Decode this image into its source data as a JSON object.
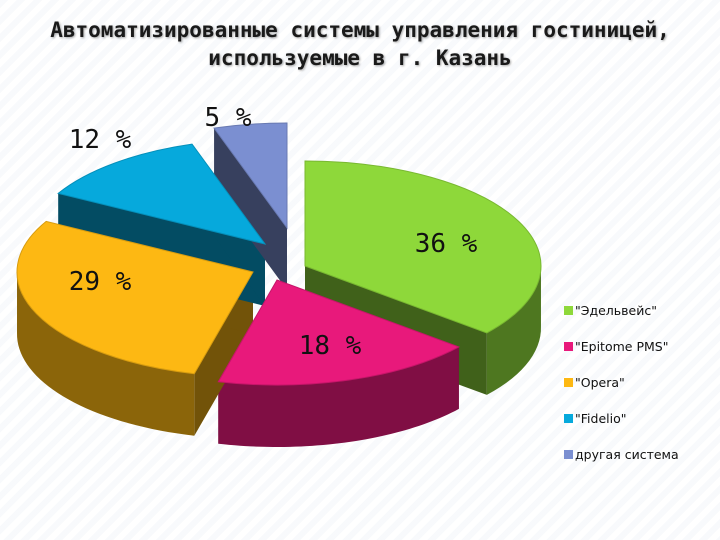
{
  "page": {
    "title_line1": "Автоматизированные системы управления гостиницей,",
    "title_line2": "используемые в г. Казань"
  },
  "colors": {
    "edelweiss": "#8ed83a",
    "epitome": "#e8197b",
    "opera": "#fdb813",
    "fidelio": "#06a9dc",
    "other": "#7b8fd1"
  },
  "chart_data": {
    "type": "pie",
    "title": "Автоматизированные системы управления гостиницей, используемые в г. Казань",
    "legend_position": "right",
    "slices": [
      {
        "name": "\"Эдельвейс\"",
        "value": 36,
        "label": "36 %",
        "color": "#8ed83a"
      },
      {
        "name": "\"Epitome PMS\"",
        "value": 18,
        "label": "18 %",
        "color": "#e8197b"
      },
      {
        "name": "\"Opera\"",
        "value": 29,
        "label": "29 %",
        "color": "#fdb813"
      },
      {
        "name": "\"Fidelio\"",
        "value": 12,
        "label": "12 %",
        "color": "#06a9dc"
      },
      {
        "name": "другая система",
        "value": 5,
        "label": "5 %",
        "color": "#7b8fd1"
      }
    ]
  }
}
